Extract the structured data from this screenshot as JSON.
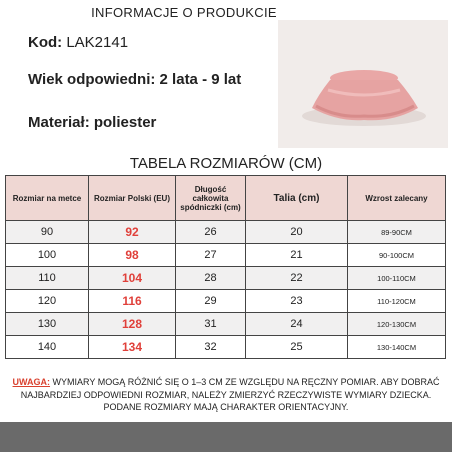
{
  "header": {
    "title": "INFORMACJE O PRODUKCIE"
  },
  "fields": [
    {
      "label": "Kod:",
      "value": "LAK2141"
    },
    {
      "label": "Wiek odpowiedni:",
      "value": "2 lata - 9 lat"
    },
    {
      "label": "Materiał:",
      "value": "poliester"
    }
  ],
  "table": {
    "title": "TABELA ROZMIARÓW (CM)",
    "columns": [
      "Rozmiar na metce",
      "Rozmiar Polski (EU)",
      "Długość całkowita spódniczki (cm)",
      "Talia (cm)",
      "Wzrost zalecany"
    ],
    "rows": [
      [
        90,
        92,
        26,
        20,
        "89-90CM"
      ],
      [
        100,
        98,
        27,
        21,
        "90-100CM"
      ],
      [
        110,
        104,
        28,
        22,
        "100-110CM"
      ],
      [
        120,
        116,
        29,
        23,
        "110-120CM"
      ],
      [
        130,
        128,
        31,
        24,
        "120-130CM"
      ],
      [
        140,
        134,
        32,
        25,
        "130-140CM"
      ]
    ]
  },
  "note": {
    "label": "UWAGA:",
    "text": "WYMIARY MOGĄ RÓŻNIĆ SIĘ O 1–3 CM ZE WZGLĘDU NA RĘCZNY POMIAR. ABY DOBRAĆ NAJBARDZIEJ ODPOWIEDNI ROZMIAR, NALEŻY ZMIERZYĆ RZECZYWISTE WYMIARY DZIECKA. PODANE ROZMIARY MAJĄ CHARAKTER ORIENTACYJNY."
  }
}
